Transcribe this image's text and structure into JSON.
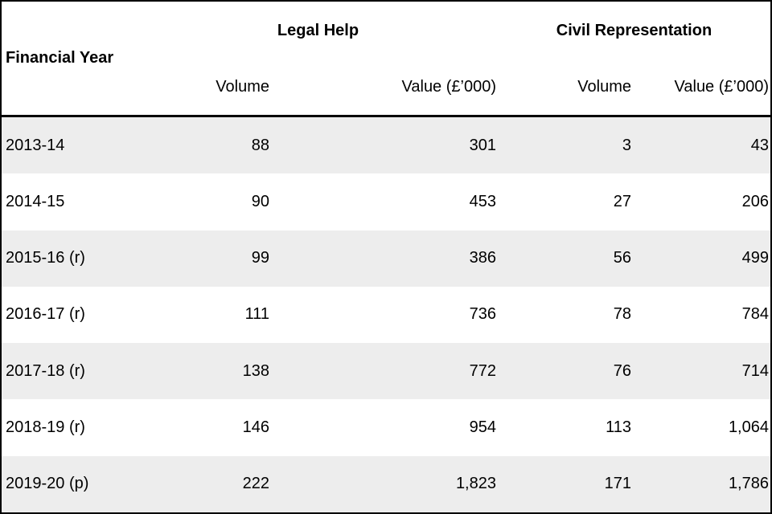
{
  "table": {
    "row_header": "Financial Year",
    "groups": [
      {
        "label": "Legal Help"
      },
      {
        "label": "Civil Representation"
      }
    ],
    "col_headers": [
      "Volume",
      "Value (£’000)",
      "Volume",
      "Value (£’000)"
    ],
    "rows": [
      {
        "year": "2013-14",
        "cells": [
          "88",
          "301",
          "3",
          "43"
        ]
      },
      {
        "year": "2014-15",
        "cells": [
          "90",
          "453",
          "27",
          "206"
        ]
      },
      {
        "year": "2015-16 (r)",
        "cells": [
          "99",
          "386",
          "56",
          "499"
        ]
      },
      {
        "year": "2016-17 (r)",
        "cells": [
          "111",
          "736",
          "78",
          "784"
        ]
      },
      {
        "year": "2017-18 (r)",
        "cells": [
          "138",
          "772",
          "76",
          "714"
        ]
      },
      {
        "year": "2018-19 (r)",
        "cells": [
          "146",
          "954",
          "113",
          "1,064"
        ]
      },
      {
        "year": "2019-20 (p)",
        "cells": [
          "222",
          "1,823",
          "171",
          "1,786"
        ]
      }
    ]
  },
  "chart_data": {
    "type": "table",
    "title": "",
    "column_groups": [
      {
        "label": "Legal Help",
        "columns": [
          "Volume",
          "Value (£’000)"
        ]
      },
      {
        "label": "Civil Representation",
        "columns": [
          "Volume",
          "Value (£’000)"
        ]
      }
    ],
    "columns": [
      "Financial Year",
      "Legal Help Volume",
      "Legal Help Value (£’000)",
      "Civil Representation Volume",
      "Civil Representation Value (£’000)"
    ],
    "rows": [
      [
        "2013-14",
        88,
        301,
        3,
        43
      ],
      [
        "2014-15",
        90,
        453,
        27,
        206
      ],
      [
        "2015-16 (r)",
        99,
        386,
        56,
        499
      ],
      [
        "2016-17 (r)",
        111,
        736,
        78,
        784
      ],
      [
        "2017-18 (r)",
        138,
        772,
        76,
        714
      ],
      [
        "2018-19 (r)",
        146,
        954,
        113,
        1064
      ],
      [
        "2019-20 (p)",
        222,
        1823,
        171,
        1786
      ]
    ],
    "layout": {
      "grid": false,
      "alternating_row_shading": true
    }
  },
  "colors": {
    "text": "#000000",
    "border": "#000000",
    "header_bg": "#ffffff",
    "row_alt_bg": "#ededed"
  }
}
